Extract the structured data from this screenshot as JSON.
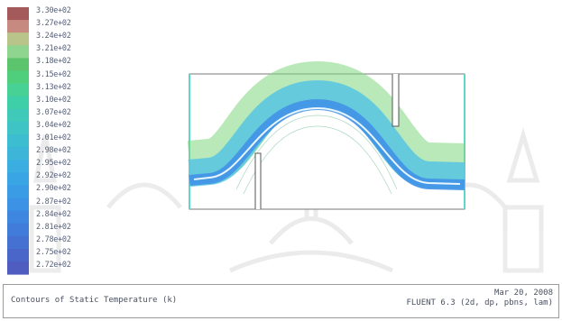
{
  "colorbar": {
    "labels": [
      "3.30e+02",
      "3.27e+02",
      "3.24e+02",
      "3.21e+02",
      "3.18e+02",
      "3.15e+02",
      "3.13e+02",
      "3.10e+02",
      "3.07e+02",
      "3.04e+02",
      "3.01e+02",
      "2.98e+02",
      "2.95e+02",
      "2.92e+02",
      "2.90e+02",
      "2.87e+02",
      "2.84e+02",
      "2.81e+02",
      "2.78e+02",
      "2.75e+02",
      "2.72e+02"
    ],
    "colors": [
      "#a45a5a",
      "#c78a80",
      "#b8c48a",
      "#8fd48f",
      "#5cc46c",
      "#4fcf7c",
      "#47d194",
      "#3fcfa8",
      "#3fc9b8",
      "#3ec4c4",
      "#3dbdd0",
      "#3cb5d8",
      "#3aaee0",
      "#3aa5e4",
      "#3b9ce6",
      "#3c92e4",
      "#3e87e0",
      "#417cda",
      "#4571d2",
      "#4a66c8",
      "#4f5cc0"
    ]
  },
  "footer": {
    "caption": "Contours of Static Temperature (k)",
    "date": "Mar 20, 2008",
    "solver": "FLUENT 6.3 (2d, dp, pbns, lam)"
  }
}
